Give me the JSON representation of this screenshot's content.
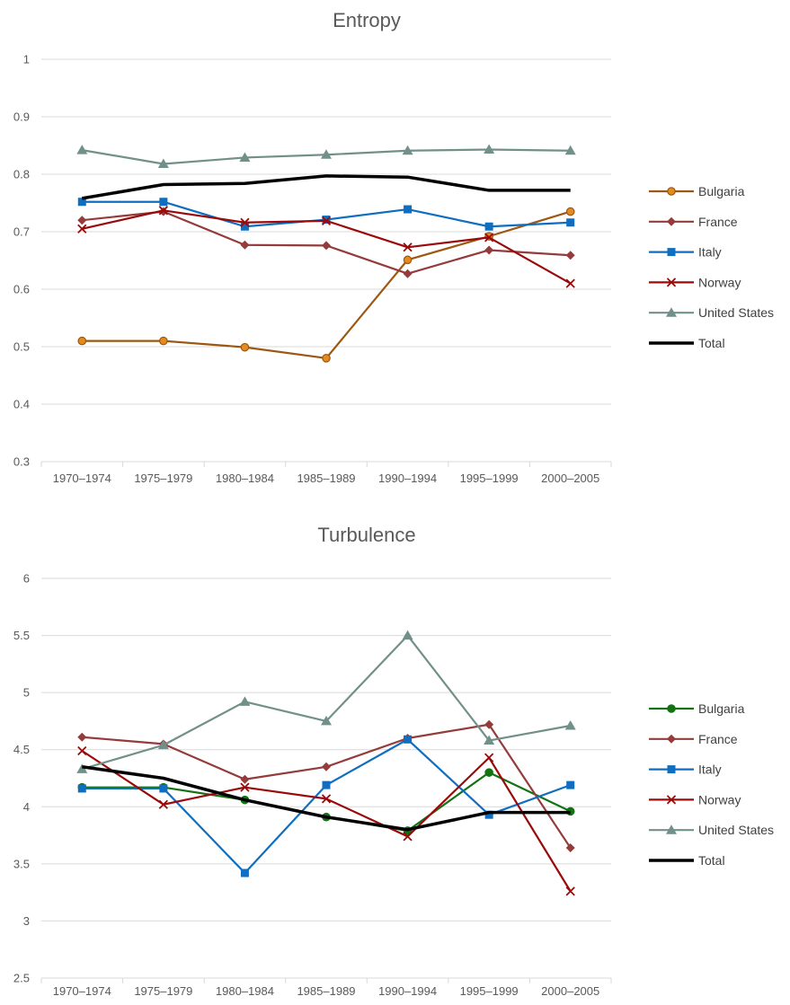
{
  "chart_data": [
    {
      "type": "line",
      "title": "Entropy",
      "categories": [
        "1970–1974",
        "1975–1979",
        "1980–1984",
        "1985–1989",
        "1990–1994",
        "1995–1999",
        "2000–2005"
      ],
      "ylim": [
        0.3,
        1
      ],
      "yticks": [
        "0.3",
        "0.4",
        "0.5",
        "0.6",
        "0.7",
        "0.8",
        "0.9",
        "1"
      ],
      "grid": true,
      "legend_position": "right",
      "series": [
        {
          "name": "Bulgaria",
          "color": "#9c5712",
          "marker": "circle",
          "marker_fill": "#e38b1f",
          "values": [
            0.51,
            0.51,
            0.499,
            0.48,
            0.651,
            0.692,
            0.735
          ]
        },
        {
          "name": "France",
          "color": "#943b3b",
          "marker": "diamond",
          "values": [
            0.72,
            0.735,
            0.677,
            0.676,
            0.627,
            0.668,
            0.659
          ]
        },
        {
          "name": "Italy",
          "color": "#0f6ebf",
          "marker": "square",
          "values": [
            0.752,
            0.752,
            0.709,
            0.721,
            0.739,
            0.709,
            0.716
          ]
        },
        {
          "name": "Norway",
          "color": "#9a0a0a",
          "marker": "x",
          "values": [
            0.705,
            0.737,
            0.716,
            0.719,
            0.673,
            0.69,
            0.61
          ]
        },
        {
          "name": "United States",
          "color": "#72908a",
          "marker": "triangle",
          "values": [
            0.842,
            0.818,
            0.829,
            0.834,
            0.841,
            0.843,
            0.841
          ]
        },
        {
          "name": "Total",
          "color": "#000000",
          "marker": "none",
          "width": 3.5,
          "values": [
            0.758,
            0.782,
            0.784,
            0.797,
            0.795,
            0.772,
            0.772
          ]
        }
      ]
    },
    {
      "type": "line",
      "title": "Turbulence",
      "categories": [
        "1970–1974",
        "1975–1979",
        "1980–1984",
        "1985–1989",
        "1990–1994",
        "1995–1999",
        "2000–2005"
      ],
      "ylim": [
        2.5,
        6
      ],
      "yticks": [
        "2.5",
        "3",
        "3.5",
        "4",
        "4.5",
        "5",
        "5.5",
        "6"
      ],
      "grid": true,
      "legend_position": "right",
      "series": [
        {
          "name": "Bulgaria",
          "color": "#137313",
          "marker": "circle",
          "marker_fill": "#137313",
          "values": [
            4.17,
            4.17,
            4.06,
            3.91,
            3.79,
            4.3,
            3.96
          ]
        },
        {
          "name": "France",
          "color": "#943b3b",
          "marker": "diamond",
          "values": [
            4.61,
            4.55,
            4.24,
            4.35,
            4.6,
            4.72,
            3.64
          ]
        },
        {
          "name": "Italy",
          "color": "#0f6ebf",
          "marker": "square",
          "values": [
            4.16,
            4.16,
            3.42,
            4.19,
            4.59,
            3.93,
            4.19
          ]
        },
        {
          "name": "Norway",
          "color": "#9a0a0a",
          "marker": "x",
          "values": [
            4.49,
            4.02,
            4.17,
            4.07,
            3.74,
            4.43,
            3.26
          ]
        },
        {
          "name": "United States",
          "color": "#72908a",
          "marker": "triangle",
          "values": [
            4.33,
            4.54,
            4.92,
            4.75,
            5.5,
            4.58,
            4.71
          ]
        },
        {
          "name": "Total",
          "color": "#000000",
          "marker": "none",
          "width": 3.5,
          "values": [
            4.35,
            4.25,
            4.06,
            3.91,
            3.8,
            3.95,
            3.95
          ]
        }
      ]
    }
  ]
}
